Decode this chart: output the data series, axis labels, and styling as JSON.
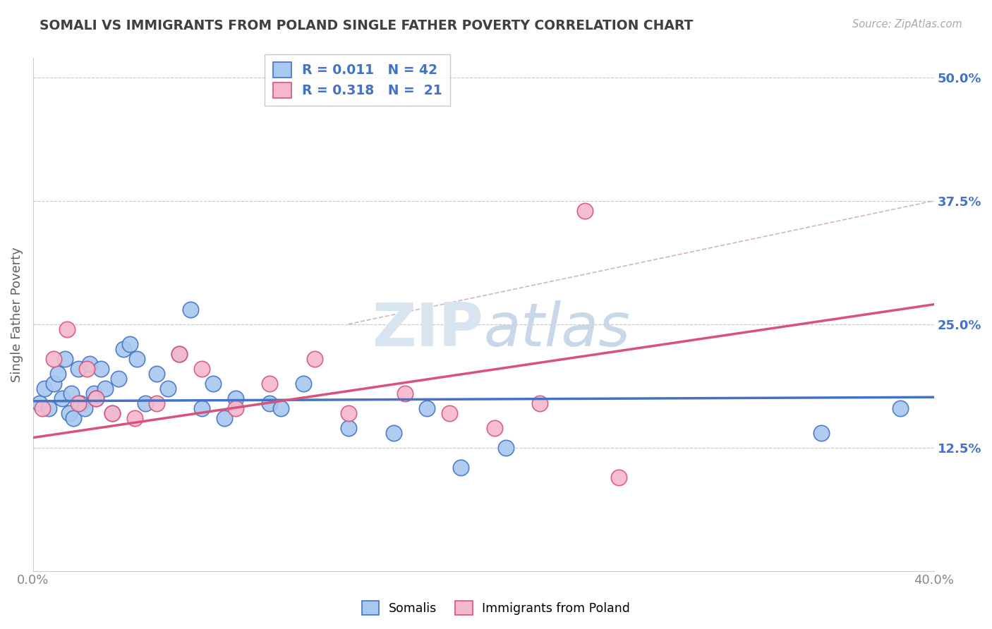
{
  "title": "SOMALI VS IMMIGRANTS FROM POLAND SINGLE FATHER POVERTY CORRELATION CHART",
  "source": "Source: ZipAtlas.com",
  "ylabel": "Single Father Poverty",
  "xlim": [
    0.0,
    40.0
  ],
  "ylim": [
    0.0,
    52.0
  ],
  "yticks": [
    12.5,
    25.0,
    37.5,
    50.0
  ],
  "somali_color": "#a8c8f0",
  "poland_color": "#f4b8cc",
  "somali_line_color": "#4472c4",
  "poland_line_color": "#d9527a",
  "trend_dash_color": "#c8a0b8",
  "background_color": "#ffffff",
  "grid_color": "#c8c8c8",
  "title_color": "#404040",
  "axis_label_color": "#606060",
  "tick_right_color": "#4472c4",
  "watermark_color": "#d8e4f0",
  "somali_x": [
    0.3,
    0.5,
    0.7,
    0.9,
    1.1,
    1.3,
    1.4,
    1.6,
    1.7,
    1.8,
    2.0,
    2.1,
    2.3,
    2.5,
    2.7,
    2.8,
    3.0,
    3.2,
    3.5,
    3.8,
    4.0,
    4.3,
    4.6,
    5.0,
    5.5,
    6.0,
    6.5,
    7.0,
    7.5,
    8.0,
    8.5,
    9.0,
    10.5,
    11.0,
    12.0,
    14.0,
    16.0,
    17.5,
    19.0,
    21.0,
    35.0,
    38.5
  ],
  "somali_y": [
    17.0,
    18.5,
    16.5,
    19.0,
    20.0,
    17.5,
    21.5,
    16.0,
    18.0,
    15.5,
    20.5,
    17.0,
    16.5,
    21.0,
    18.0,
    17.5,
    20.5,
    18.5,
    16.0,
    19.5,
    22.5,
    23.0,
    21.5,
    17.0,
    20.0,
    18.5,
    22.0,
    26.5,
    16.5,
    19.0,
    15.5,
    17.5,
    17.0,
    16.5,
    19.0,
    14.5,
    14.0,
    16.5,
    10.5,
    12.5,
    14.0,
    16.5
  ],
  "poland_x": [
    0.4,
    0.9,
    1.5,
    2.0,
    2.4,
    2.8,
    3.5,
    4.5,
    5.5,
    6.5,
    7.5,
    9.0,
    10.5,
    12.5,
    14.0,
    16.5,
    18.5,
    20.5,
    22.5,
    24.5,
    26.0
  ],
  "poland_y": [
    16.5,
    21.5,
    24.5,
    17.0,
    20.5,
    17.5,
    16.0,
    15.5,
    17.0,
    22.0,
    20.5,
    16.5,
    19.0,
    21.5,
    16.0,
    18.0,
    16.0,
    14.5,
    17.0,
    36.5,
    9.5
  ],
  "somali_trend_y0": 17.2,
  "somali_trend_y1": 17.6,
  "poland_trend_y0": 13.5,
  "poland_trend_y1": 27.0,
  "dash_line_x": [
    14.0,
    40.0
  ],
  "dash_line_y": [
    25.0,
    37.5
  ]
}
